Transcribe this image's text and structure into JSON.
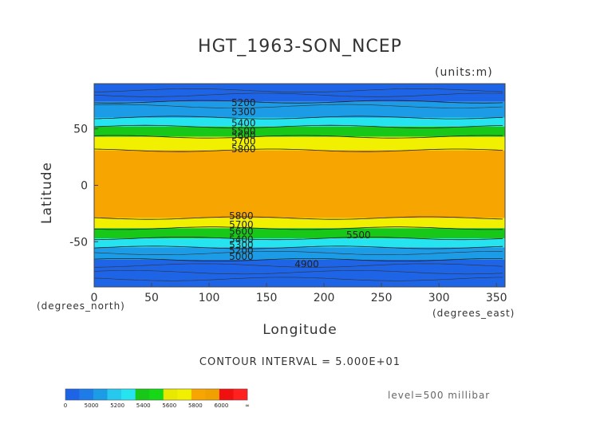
{
  "chart_data": {
    "type": "contour",
    "title": "HGT_1963-SON_NCEP",
    "units_label": "(units:m)",
    "xlabel": "Longitude",
    "ylabel": "Latitude",
    "x_units": "(degrees_north)",
    "y_units": "(degrees_east)",
    "xlim": [
      0,
      357.5
    ],
    "ylim": [
      -90,
      90
    ],
    "x_ticks": [
      0,
      50,
      100,
      150,
      200,
      250,
      300,
      350
    ],
    "y_ticks": [
      50,
      0,
      -50
    ],
    "contour_interval_text": "CONTOUR INTERVAL = 5.000E+01",
    "level_text": "level=500 millibar",
    "bands": [
      {
        "lat_from": 90,
        "lat_to": 74,
        "color": "#1e64e6"
      },
      {
        "lat_from": 74,
        "lat_to": 60,
        "color": "#1c9be6"
      },
      {
        "lat_from": 60,
        "lat_to": 52,
        "color": "#26e3f0"
      },
      {
        "lat_from": 52,
        "lat_to": 43,
        "color": "#18c818"
      },
      {
        "lat_from": 43,
        "lat_to": 31,
        "color": "#f0f000"
      },
      {
        "lat_from": 31,
        "lat_to": -29,
        "color": "#f7a500"
      },
      {
        "lat_from": -29,
        "lat_to": -38,
        "color": "#f0f000"
      },
      {
        "lat_from": -38,
        "lat_to": -47,
        "color": "#18c818"
      },
      {
        "lat_from": -47,
        "lat_to": -55,
        "color": "#26e3f0"
      },
      {
        "lat_from": -55,
        "lat_to": -66,
        "color": "#1c9be6"
      },
      {
        "lat_from": -66,
        "lat_to": -90,
        "color": "#1e64e6"
      }
    ],
    "contour_labels": [
      {
        "text": "5200",
        "lon": 130,
        "lat": 73
      },
      {
        "text": "5300",
        "lon": 130,
        "lat": 65
      },
      {
        "text": "5400",
        "lon": 130,
        "lat": 55
      },
      {
        "text": "5500",
        "lon": 130,
        "lat": 48
      },
      {
        "text": "5600",
        "lon": 130,
        "lat": 44
      },
      {
        "text": "5700",
        "lon": 130,
        "lat": 39
      },
      {
        "text": "5800",
        "lon": 130,
        "lat": 32
      },
      {
        "text": "5800",
        "lon": 128,
        "lat": -27
      },
      {
        "text": "5700",
        "lon": 128,
        "lat": -35
      },
      {
        "text": "5600",
        "lon": 128,
        "lat": -41
      },
      {
        "text": "5500",
        "lon": 230,
        "lat": -44
      },
      {
        "text": "5400",
        "lon": 128,
        "lat": -48
      },
      {
        "text": "5300",
        "lon": 128,
        "lat": -53
      },
      {
        "text": "5200",
        "lon": 128,
        "lat": -58
      },
      {
        "text": "5000",
        "lon": 128,
        "lat": -63
      },
      {
        "text": "4900",
        "lon": 185,
        "lat": -70
      }
    ],
    "colorbar": {
      "labels": [
        "0",
        "5000",
        "5200",
        "5400",
        "5600",
        "5800",
        "6000",
        "∞"
      ],
      "colors": [
        "#1e64e6",
        "#1e7ce8",
        "#1c9be6",
        "#26c8ee",
        "#26e3f0",
        "#18c818",
        "#16d816",
        "#e8e800",
        "#f0f000",
        "#f7a500",
        "#f0a000",
        "#f01010",
        "#ff2020"
      ]
    }
  }
}
